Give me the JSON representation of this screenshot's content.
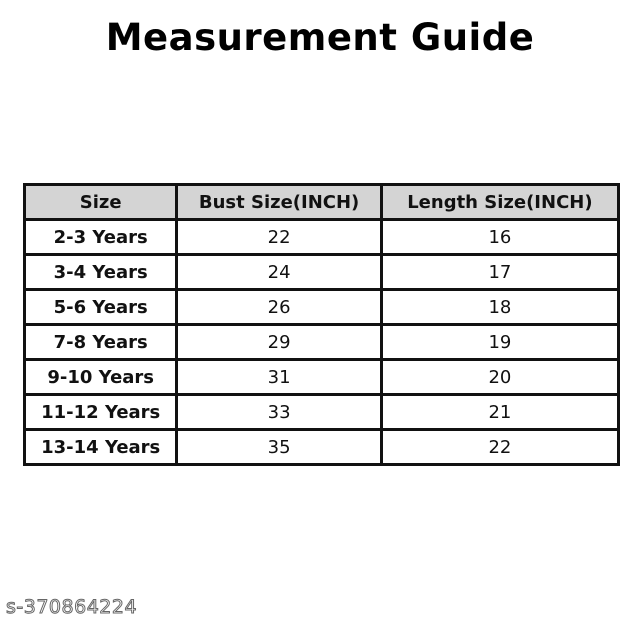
{
  "title": "Measurement Guide",
  "table": {
    "headers": [
      "Size",
      "Bust Size(INCH)",
      "Length Size(INCH)"
    ],
    "rows": [
      [
        "2-3 Years",
        "22",
        "16"
      ],
      [
        "3-4 Years",
        "24",
        "17"
      ],
      [
        "5-6 Years",
        "26",
        "18"
      ],
      [
        "7-8 Years",
        "29",
        "19"
      ],
      [
        "9-10 Years",
        "31",
        "20"
      ],
      [
        "11-12 Years",
        "33",
        "21"
      ],
      [
        "13-14 Years",
        "35",
        "22"
      ]
    ]
  },
  "watermark": "s-370864224"
}
